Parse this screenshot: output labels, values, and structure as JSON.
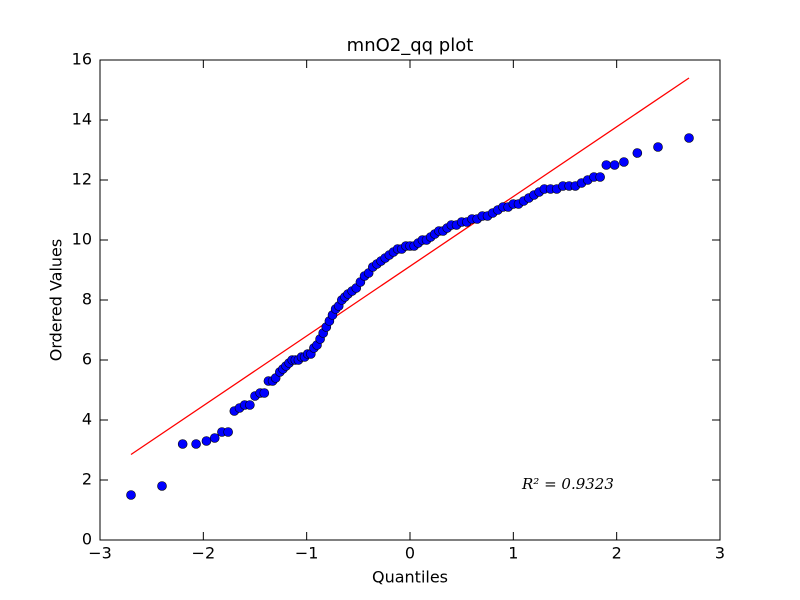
{
  "chart_data": {
    "type": "scatter",
    "title": "mnO2_qq plot",
    "x_label": "Quantiles",
    "y_label": "Ordered Values",
    "annotation": "R² = 0.9323",
    "xlim": [
      -3,
      3
    ],
    "ylim": [
      0,
      16
    ],
    "xticks": [
      {
        "value": -3,
        "label": "−3"
      },
      {
        "value": -2,
        "label": "−2"
      },
      {
        "value": -1,
        "label": "−1"
      },
      0,
      1,
      2,
      3
    ],
    "yticks": [
      0,
      2,
      4,
      6,
      8,
      10,
      12,
      14,
      16
    ],
    "points": {
      "color": "#0000ff",
      "x": [
        -2.7,
        -2.4,
        -2.2,
        -2.07,
        -1.97,
        -1.89,
        -1.82,
        -1.76,
        -1.7,
        -1.65,
        -1.6,
        -1.55,
        -1.5,
        -1.45,
        -1.41,
        -1.37,
        -1.33,
        -1.3,
        -1.26,
        -1.23,
        -1.2,
        -1.17,
        -1.14,
        -1.11,
        -1.08,
        -1.05,
        -1.02,
        -0.99,
        -0.96,
        -0.93,
        -0.9,
        -0.87,
        -0.84,
        -0.81,
        -0.78,
        -0.75,
        -0.72,
        -0.69,
        -0.66,
        -0.63,
        -0.6,
        -0.56,
        -0.52,
        -0.48,
        -0.44,
        -0.4,
        -0.36,
        -0.32,
        -0.28,
        -0.24,
        -0.2,
        -0.16,
        -0.12,
        -0.08,
        -0.04,
        0,
        0.04,
        0.08,
        0.12,
        0.16,
        0.2,
        0.24,
        0.28,
        0.32,
        0.36,
        0.4,
        0.45,
        0.5,
        0.55,
        0.6,
        0.65,
        0.7,
        0.75,
        0.8,
        0.85,
        0.9,
        0.95,
        1,
        1.05,
        1.1,
        1.15,
        1.2,
        1.25,
        1.3,
        1.36,
        1.42,
        1.48,
        1.54,
        1.6,
        1.66,
        1.72,
        1.78,
        1.84,
        1.9,
        1.98,
        2.07,
        2.2,
        2.4,
        2.7
      ],
      "y": [
        1.5,
        1.8,
        3.2,
        3.2,
        3.3,
        3.4,
        3.6,
        3.6,
        4.3,
        4.4,
        4.5,
        4.5,
        4.8,
        4.9,
        4.9,
        5.3,
        5.3,
        5.4,
        5.6,
        5.7,
        5.8,
        5.9,
        6,
        6,
        6,
        6.1,
        6.1,
        6.2,
        6.2,
        6.4,
        6.5,
        6.7,
        6.9,
        7.1,
        7.3,
        7.5,
        7.7,
        7.8,
        8,
        8.1,
        8.2,
        8.3,
        8.4,
        8.6,
        8.8,
        8.9,
        9.1,
        9.2,
        9.3,
        9.4,
        9.5,
        9.6,
        9.7,
        9.7,
        9.8,
        9.8,
        9.8,
        9.9,
        10,
        10,
        10.1,
        10.2,
        10.3,
        10.3,
        10.4,
        10.5,
        10.5,
        10.6,
        10.6,
        10.7,
        10.7,
        10.8,
        10.8,
        10.9,
        11,
        11.1,
        11.1,
        11.2,
        11.2,
        11.3,
        11.4,
        11.5,
        11.6,
        11.7,
        11.7,
        11.7,
        11.8,
        11.8,
        11.8,
        11.9,
        12,
        12.1,
        12.1,
        12.5,
        12.5,
        12.6,
        12.9,
        13.1,
        13.4
      ]
    },
    "fit_line": {
      "color": "#ff0000",
      "x": [
        -2.7,
        2.7
      ],
      "y": [
        2.85,
        15.4
      ]
    }
  }
}
